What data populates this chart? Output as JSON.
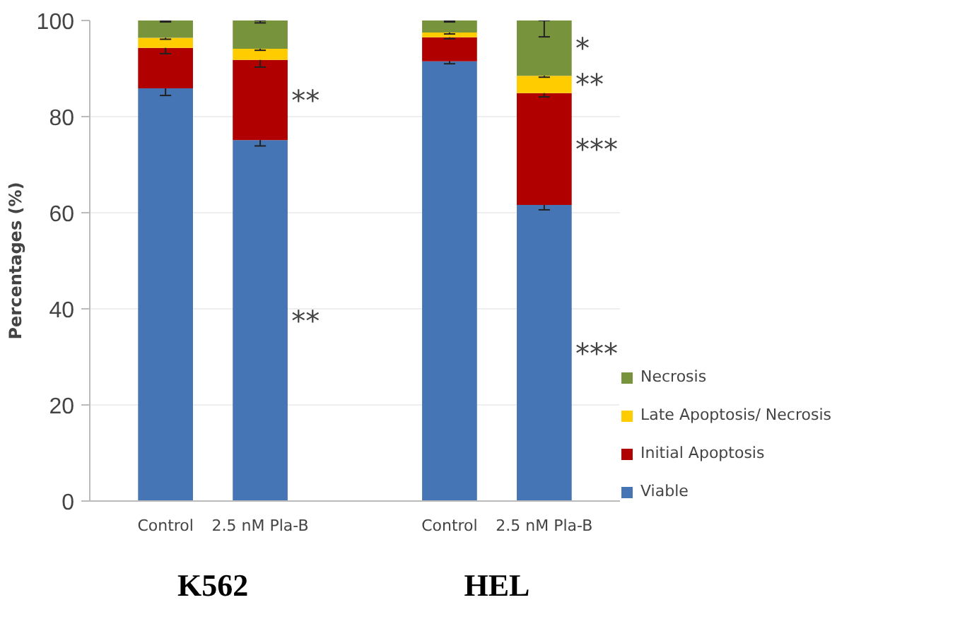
{
  "chart_data": {
    "type": "bar",
    "stacked": true,
    "ylabel": "Percentages (%)",
    "categories": [
      "Control",
      "2.5 nM Pla-B",
      null,
      "Control",
      "2.5 nM Pla-B"
    ],
    "series": [
      {
        "name": "Viable",
        "color": "#4575b4",
        "values": [
          85.9,
          75.1,
          null,
          91.5,
          61.6
        ],
        "errors": [
          1.5,
          1.2,
          null,
          0.5,
          1.0
        ],
        "value_labels": [
          null,
          "**",
          null,
          null,
          "***"
        ]
      },
      {
        "name": "Initial Apoptosis",
        "color": "#b00000",
        "values": [
          8.4,
          16.7,
          null,
          5.0,
          23.3
        ],
        "errors": [
          1.2,
          1.5,
          null,
          0.3,
          0.8
        ],
        "value_labels": [
          null,
          "**",
          null,
          null,
          "***"
        ]
      },
      {
        "name": "Late Apoptosis/ Necrosis",
        "color": "#ffcc00",
        "values": [
          2.1,
          2.3,
          null,
          1.0,
          3.6
        ],
        "errors": [
          0.3,
          0.3,
          null,
          0.3,
          0.3
        ],
        "value_labels": [
          null,
          null,
          null,
          null,
          "**"
        ]
      },
      {
        "name": "Necrosis",
        "color": "#77933c",
        "values": [
          3.6,
          5.9,
          null,
          2.5,
          11.5
        ],
        "errors": [
          [
            99.7,
            100
          ],
          [
            99.5,
            100
          ],
          null,
          [
            99.7,
            100
          ],
          [
            96.6,
            100
          ]
        ],
        "value_labels": [
          null,
          null,
          null,
          null,
          "*"
        ]
      }
    ],
    "ylim": [
      0,
      100
    ],
    "yticks": [
      0,
      20,
      40,
      60,
      80,
      100
    ],
    "grid": "y",
    "legend": "right",
    "annotations": [
      "K562",
      "HEL"
    ]
  }
}
